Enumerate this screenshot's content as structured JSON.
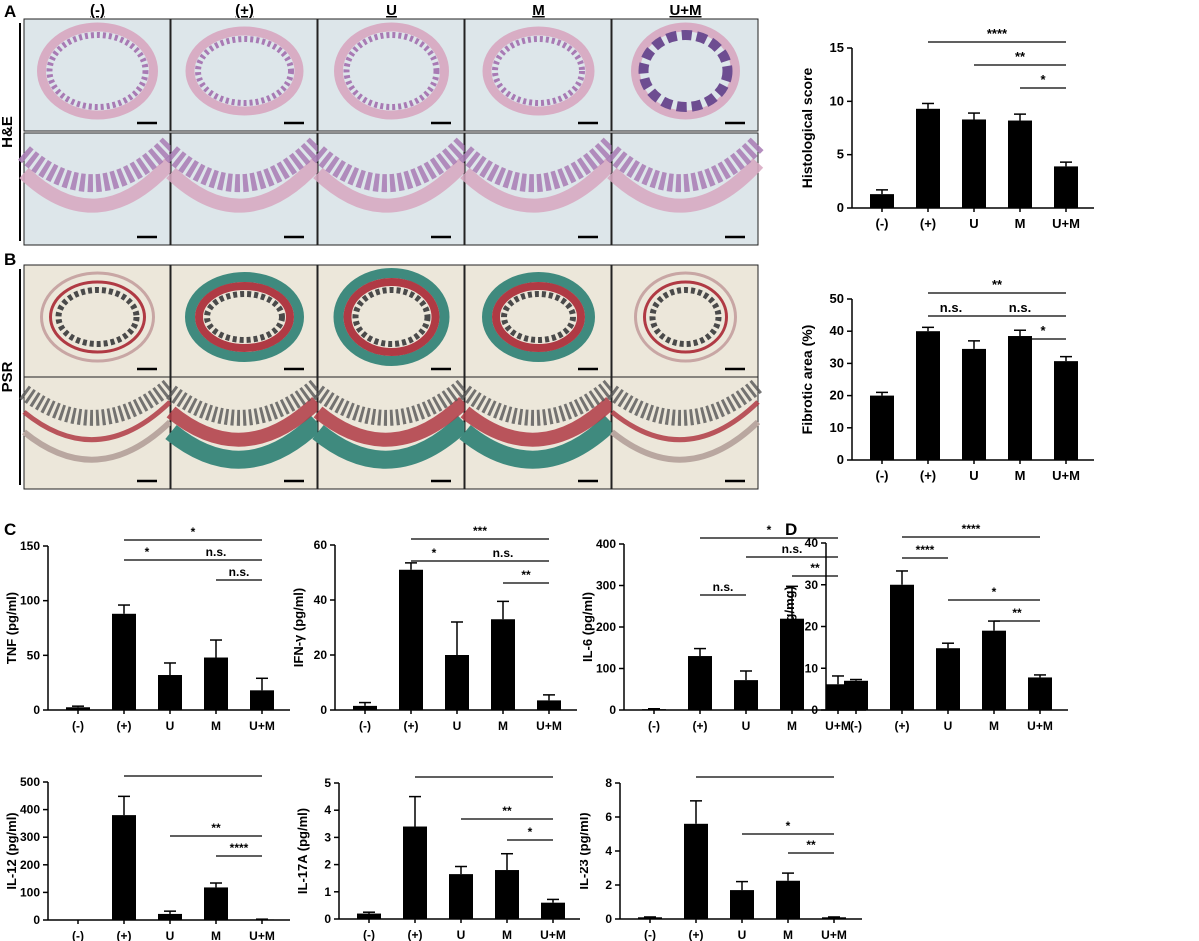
{
  "figure": {
    "panel_letters": [
      "A",
      "B",
      "C",
      "D"
    ],
    "histology": {
      "groups": [
        "(-)",
        "(+)",
        "U",
        "M",
        "U+M"
      ],
      "rows": [
        {
          "label": "H&E",
          "stain": "he"
        },
        {
          "label": "PSR",
          "stain": "psr"
        }
      ]
    }
  },
  "colors": {
    "bar": "#000000",
    "he_bg": "#dde6ea",
    "he_tissue": "#a87ab4",
    "he_pink": "#d7a6c0",
    "psr_bg": "#ece7da",
    "psr_red": "#b03a44",
    "psr_green": "#3f8a7e"
  },
  "chart_data": [
    {
      "id": "histo",
      "type": "bar",
      "categories": [
        "(-)",
        "(+)",
        "U",
        "M",
        "U+M"
      ],
      "values": [
        1.3,
        9.3,
        8.3,
        8.2,
        3.9
      ],
      "errors": [
        0.4,
        0.5,
        0.6,
        0.6,
        0.4
      ],
      "ylabel": "Histological score",
      "ylim": [
        0,
        15
      ],
      "yticks": [
        "0",
        "5",
        "10",
        "15"
      ],
      "significance": [
        {
          "from": 1,
          "to": 4,
          "label": "****",
          "level": 0
        },
        {
          "from": 2,
          "to": 4,
          "label": "**",
          "level": 1
        },
        {
          "from": 3,
          "to": 4,
          "label": "*",
          "level": 2
        }
      ]
    },
    {
      "id": "fibrotic",
      "type": "bar",
      "categories": [
        "(-)",
        "(+)",
        "U",
        "M",
        "U+M"
      ],
      "values": [
        20,
        40,
        34.5,
        38.5,
        30.7
      ],
      "errors": [
        1.0,
        1.2,
        2.5,
        1.8,
        1.4
      ],
      "ylabel": "Fibrotic area (%)",
      "ylim": [
        0,
        50
      ],
      "yticks": [
        "0",
        "10",
        "20",
        "30",
        "40",
        "50"
      ],
      "significance": [
        {
          "from": 1,
          "to": 4,
          "label": "**",
          "level": 0
        },
        {
          "from": 1,
          "to": 2,
          "label": "n.s.",
          "level": 1
        },
        {
          "from": 2,
          "to": 4,
          "label": "n.s.",
          "level": 1
        },
        {
          "from": 3,
          "to": 4,
          "label": "*",
          "level": 2
        }
      ]
    },
    {
      "id": "tnf",
      "type": "bar",
      "categories": [
        "(-)",
        "(+)",
        "U",
        "M",
        "U+M"
      ],
      "values": [
        2.5,
        88,
        32,
        48,
        18
      ],
      "errors": [
        1,
        8,
        11,
        16,
        11
      ],
      "ylabel": "TNF (pg/ml)",
      "ylim": [
        0,
        150
      ],
      "yticks": [
        "0",
        "50",
        "100",
        "150"
      ],
      "significance": [
        {
          "from": 1,
          "to": 4,
          "label": "*",
          "level": 0
        },
        {
          "from": 1,
          "to": 2,
          "label": "*",
          "level": 1
        },
        {
          "from": 2,
          "to": 4,
          "label": "n.s.",
          "level": 1
        },
        {
          "from": 3,
          "to": 4,
          "label": "n.s.",
          "level": 2
        }
      ]
    },
    {
      "id": "ifng",
      "type": "bar",
      "categories": [
        "(-)",
        "(+)",
        "U",
        "M",
        "U+M"
      ],
      "values": [
        1.5,
        51,
        20,
        33,
        3.5
      ],
      "errors": [
        1.2,
        2.5,
        12,
        6.5,
        2
      ],
      "ylabel": "IFN-γ (pg/ml)",
      "ylim": [
        0,
        60
      ],
      "yticks": [
        "0",
        "20",
        "40",
        "60"
      ],
      "significance": [
        {
          "from": 1,
          "to": 4,
          "label": "***",
          "level": 0
        },
        {
          "from": 1,
          "to": 2,
          "label": "*",
          "level": 1
        },
        {
          "from": 2,
          "to": 4,
          "label": "n.s.",
          "level": 1
        },
        {
          "from": 3,
          "to": 4,
          "label": "**",
          "level": 2
        }
      ]
    },
    {
      "id": "il6",
      "type": "bar",
      "categories": [
        "(-)",
        "(+)",
        "U",
        "M",
        "U+M"
      ],
      "values": [
        2,
        130,
        72,
        220,
        62
      ],
      "errors": [
        1,
        18,
        22,
        78,
        20
      ],
      "ylabel": "IL-6 (pg/ml)",
      "ylim": [
        0,
        400
      ],
      "yticks": [
        "0",
        "100",
        "200",
        "300",
        "400"
      ],
      "significance": [
        {
          "from": 1,
          "to": 4,
          "label": "*",
          "level": 0
        },
        {
          "from": 2,
          "to": 4,
          "label": "n.s.",
          "level": 1
        },
        {
          "from": 3,
          "to": 4,
          "label": "**",
          "level": 2
        },
        {
          "from": 1,
          "to": 2,
          "label": "n.s.",
          "level": 3
        }
      ]
    },
    {
      "id": "mpo",
      "type": "bar",
      "categories": [
        "(-)",
        "(+)",
        "U",
        "M",
        "U+M"
      ],
      "values": [
        7,
        30,
        14.8,
        19,
        7.8
      ],
      "errors": [
        0.3,
        3.3,
        1.2,
        2.3,
        0.6
      ],
      "ylabel": "MPO (ng/mg)",
      "ylim": [
        0,
        40
      ],
      "yticks": [
        "0",
        "10",
        "20",
        "30",
        "40"
      ],
      "significance": [
        {
          "from": 1,
          "to": 4,
          "label": "****",
          "level": 0
        },
        {
          "from": 1,
          "to": 2,
          "label": "****",
          "level": 1
        },
        {
          "from": 2,
          "to": 4,
          "label": "*",
          "level": 3
        },
        {
          "from": 3,
          "to": 4,
          "label": "**",
          "level": 4
        }
      ]
    },
    {
      "id": "il12",
      "type": "bar",
      "categories": [
        "(-)",
        "(+)",
        "U",
        "M",
        "U+M"
      ],
      "values": [
        0,
        380,
        22,
        118,
        2
      ],
      "errors": [
        0,
        68,
        10,
        16,
        1
      ],
      "ylabel": "IL-12 (pg/ml)",
      "ylim": [
        0,
        500
      ],
      "yticks": [
        "0",
        "100",
        "200",
        "300",
        "400",
        "500"
      ],
      "significance": [
        {
          "from": 1,
          "to": 4,
          "label": "****",
          "level": 0
        },
        {
          "from": 2,
          "to": 4,
          "label": "**",
          "level": 3
        },
        {
          "from": 3,
          "to": 4,
          "label": "****",
          "level": 4
        }
      ]
    },
    {
      "id": "il17a",
      "type": "bar",
      "categories": [
        "(-)",
        "(+)",
        "U",
        "M",
        "U+M"
      ],
      "values": [
        0.2,
        3.4,
        1.65,
        1.8,
        0.6
      ],
      "errors": [
        0.05,
        1.1,
        0.28,
        0.6,
        0.12
      ],
      "ylabel": "IL-17A (pg/ml)",
      "ylim": [
        0,
        5
      ],
      "yticks": [
        "0",
        "1",
        "2",
        "3",
        "4",
        "5"
      ],
      "significance": [
        {
          "from": 1,
          "to": 4,
          "label": "*",
          "level": 0
        },
        {
          "from": 2,
          "to": 4,
          "label": "**",
          "level": 2
        },
        {
          "from": 3,
          "to": 4,
          "label": "*",
          "level": 3
        }
      ]
    },
    {
      "id": "il23",
      "type": "bar",
      "categories": [
        "(-)",
        "(+)",
        "U",
        "M",
        "U+M"
      ],
      "values": [
        0.1,
        5.6,
        1.7,
        2.25,
        0.1
      ],
      "errors": [
        0.02,
        1.35,
        0.5,
        0.45,
        0.02
      ],
      "ylabel": "IL-23 (pg/ml)",
      "ylim": [
        0,
        8
      ],
      "yticks": [
        "0",
        "2",
        "4",
        "6",
        "8"
      ],
      "significance": [
        {
          "from": 1,
          "to": 4,
          "label": "****",
          "level": 0
        },
        {
          "from": 2,
          "to": 4,
          "label": "*",
          "level": 3
        },
        {
          "from": 3,
          "to": 4,
          "label": "**",
          "level": 4
        }
      ]
    }
  ]
}
